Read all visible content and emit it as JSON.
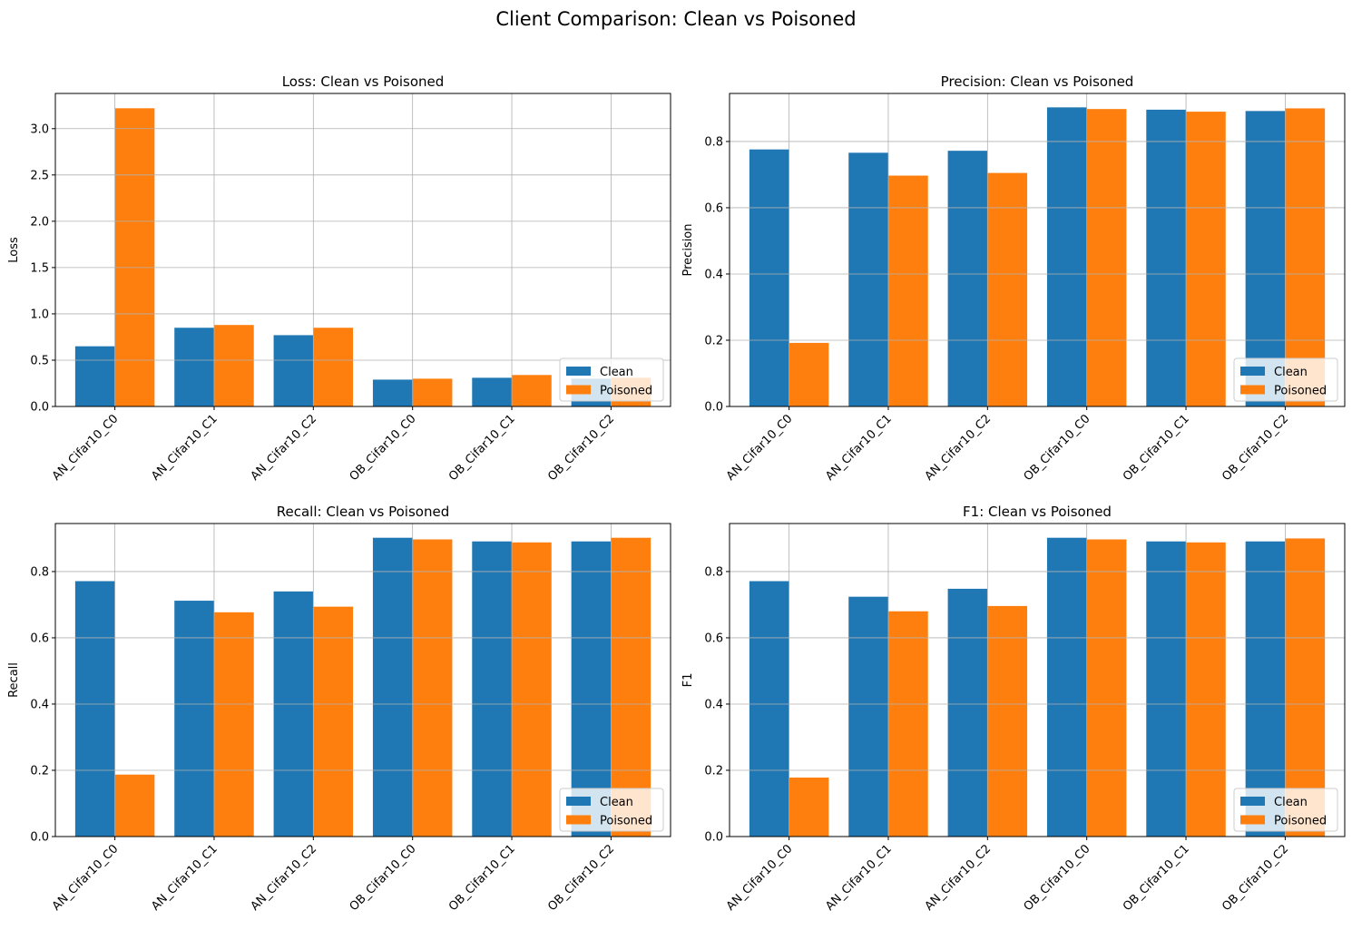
{
  "figure": {
    "title": "Client Comparison: Clean vs Poisoned"
  },
  "colors": {
    "clean": "#1f77b4",
    "poisoned": "#ff7f0e",
    "grid": "#b0b0b0",
    "axis": "#000000"
  },
  "legend": {
    "clean_label": "Clean",
    "poisoned_label": "Poisoned",
    "placement": "lower right"
  },
  "chart_data": [
    {
      "type": "bar",
      "title": "Loss: Clean vs Poisoned",
      "xlabel": "",
      "ylabel": "Loss",
      "categories": [
        "AN_Cifar10_C0",
        "AN_Cifar10_C1",
        "AN_Cifar10_C2",
        "OB_Cifar10_C0",
        "OB_Cifar10_C1",
        "OB_Cifar10_C2"
      ],
      "series": [
        {
          "name": "Clean",
          "values": [
            0.65,
            0.85,
            0.77,
            0.29,
            0.31,
            0.3
          ]
        },
        {
          "name": "Poisoned",
          "values": [
            3.22,
            0.88,
            0.85,
            0.3,
            0.34,
            0.31
          ]
        }
      ],
      "ylim": [
        0,
        3.38
      ],
      "yticks": [
        0.0,
        0.5,
        1.0,
        1.5,
        2.0,
        2.5,
        3.0
      ],
      "ytick_labels": [
        "0.0",
        "0.5",
        "1.0",
        "1.5",
        "2.0",
        "2.5",
        "3.0"
      ],
      "grid": true,
      "legend_position": "lower right"
    },
    {
      "type": "bar",
      "title": "Precision: Clean vs Poisoned",
      "xlabel": "",
      "ylabel": "Precision",
      "categories": [
        "AN_Cifar10_C0",
        "AN_Cifar10_C1",
        "AN_Cifar10_C2",
        "OB_Cifar10_C0",
        "OB_Cifar10_C1",
        "OB_Cifar10_C2"
      ],
      "series": [
        {
          "name": "Clean",
          "values": [
            0.776,
            0.766,
            0.772,
            0.903,
            0.896,
            0.892
          ]
        },
        {
          "name": "Poisoned",
          "values": [
            0.192,
            0.697,
            0.705,
            0.898,
            0.89,
            0.9
          ]
        }
      ],
      "ylim": [
        0,
        0.945
      ],
      "yticks": [
        0.0,
        0.2,
        0.4,
        0.6,
        0.8
      ],
      "ytick_labels": [
        "0.0",
        "0.2",
        "0.4",
        "0.6",
        "0.8"
      ],
      "grid": true,
      "legend_position": "lower right"
    },
    {
      "type": "bar",
      "title": "Recall: Clean vs Poisoned",
      "xlabel": "",
      "ylabel": "Recall",
      "categories": [
        "AN_Cifar10_C0",
        "AN_Cifar10_C1",
        "AN_Cifar10_C2",
        "OB_Cifar10_C0",
        "OB_Cifar10_C1",
        "OB_Cifar10_C2"
      ],
      "series": [
        {
          "name": "Clean",
          "values": [
            0.771,
            0.712,
            0.74,
            0.902,
            0.891,
            0.891
          ]
        },
        {
          "name": "Poisoned",
          "values": [
            0.187,
            0.677,
            0.694,
            0.897,
            0.888,
            0.902
          ]
        }
      ],
      "ylim": [
        0,
        0.945
      ],
      "yticks": [
        0.0,
        0.2,
        0.4,
        0.6,
        0.8
      ],
      "ytick_labels": [
        "0.0",
        "0.2",
        "0.4",
        "0.6",
        "0.8"
      ],
      "grid": true,
      "legend_position": "lower right"
    },
    {
      "type": "bar",
      "title": "F1: Clean vs Poisoned",
      "xlabel": "",
      "ylabel": "F1",
      "categories": [
        "AN_Cifar10_C0",
        "AN_Cifar10_C1",
        "AN_Cifar10_C2",
        "OB_Cifar10_C0",
        "OB_Cifar10_C1",
        "OB_Cifar10_C2"
      ],
      "series": [
        {
          "name": "Clean",
          "values": [
            0.771,
            0.724,
            0.748,
            0.902,
            0.891,
            0.891
          ]
        },
        {
          "name": "Poisoned",
          "values": [
            0.178,
            0.68,
            0.696,
            0.897,
            0.888,
            0.9
          ]
        }
      ],
      "ylim": [
        0,
        0.945
      ],
      "yticks": [
        0.0,
        0.2,
        0.4,
        0.6,
        0.8
      ],
      "ytick_labels": [
        "0.0",
        "0.2",
        "0.4",
        "0.6",
        "0.8"
      ],
      "grid": true,
      "legend_position": "lower right"
    }
  ]
}
